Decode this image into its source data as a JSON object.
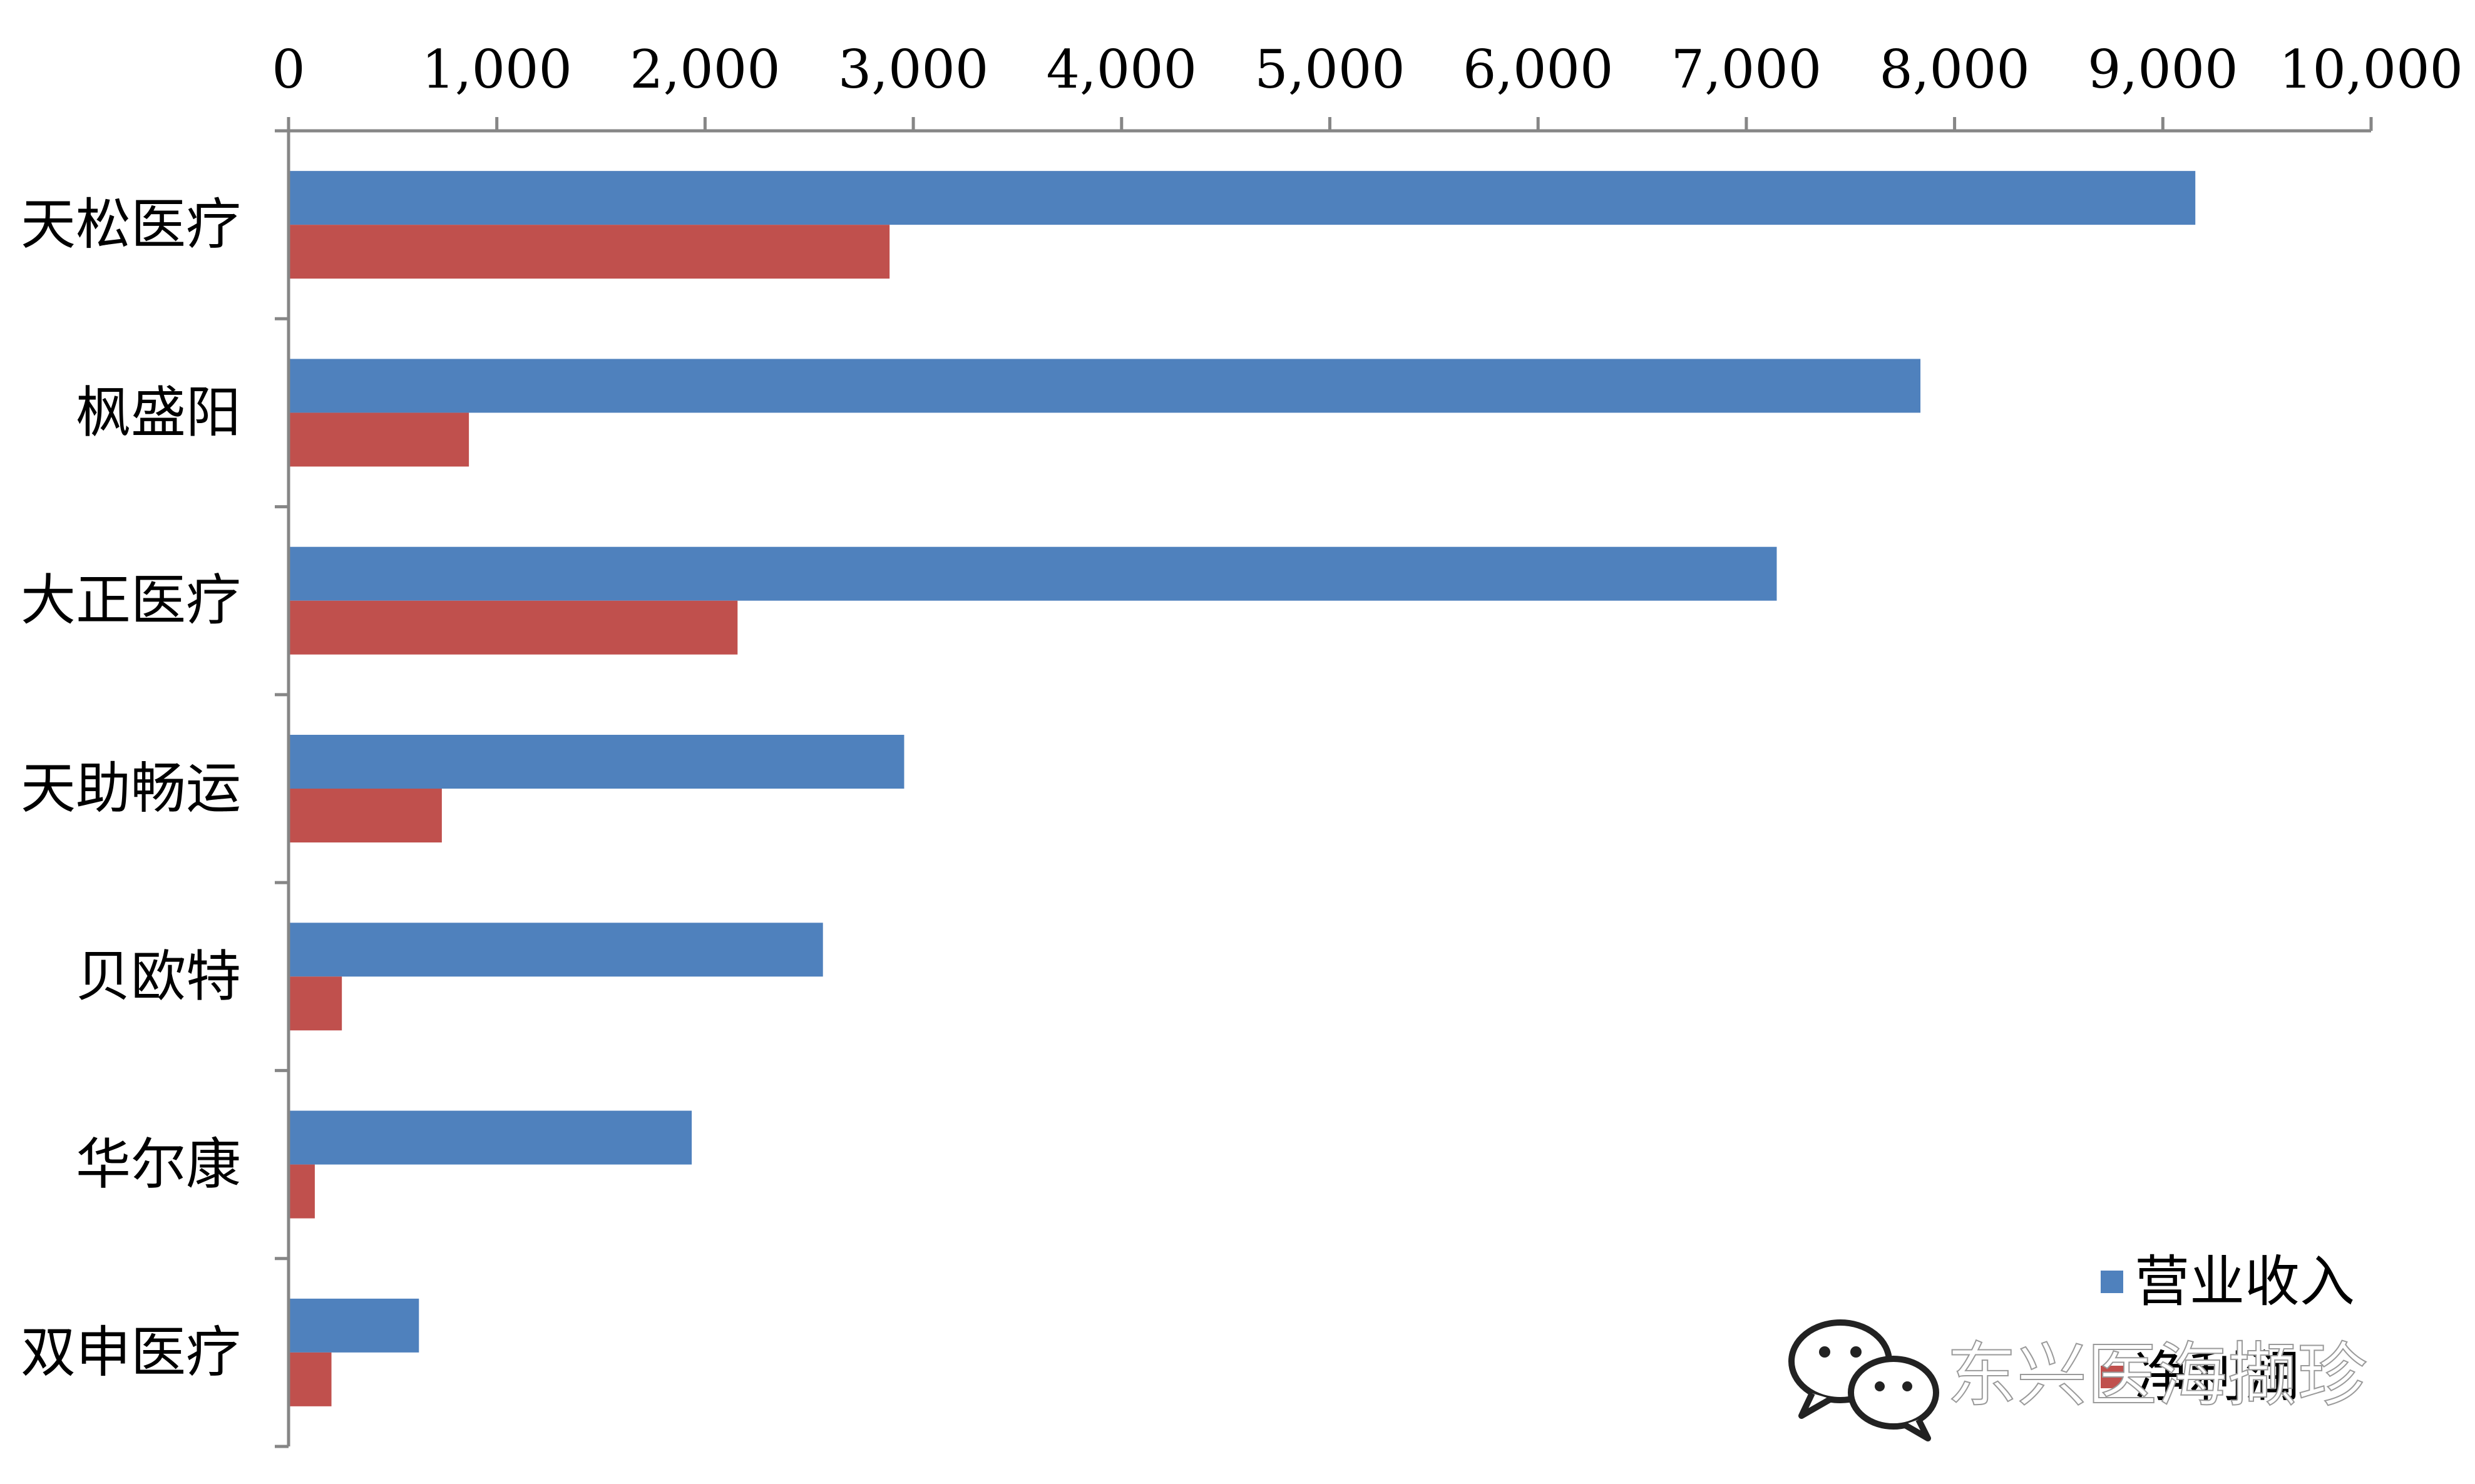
{
  "chart_data": {
    "type": "bar",
    "orientation": "horizontal",
    "x_axis_position": "top",
    "categories": [
      "天松医疗",
      "枫盛阳",
      "大正医疗",
      "天助畅运",
      "贝欧特",
      "华尔康",
      "双申医疗"
    ],
    "series": [
      {
        "name": "营业收入",
        "color": "#4F81BD",
        "values": [
          9150,
          7830,
          7140,
          2950,
          2560,
          1930,
          620
        ]
      },
      {
        "name": "净利润",
        "color": "#C0504D",
        "values": [
          2880,
          860,
          2150,
          730,
          250,
          120,
          200
        ]
      }
    ],
    "xlim": [
      0,
      10000
    ],
    "x_ticks": [
      "0",
      "1,000",
      "2,000",
      "3,000",
      "4,000",
      "5,000",
      "6,000",
      "7,000",
      "8,000",
      "9,000",
      "10,000"
    ],
    "grid": false,
    "legend_position": "bottom-right",
    "title": "",
    "xlabel": "",
    "ylabel": ""
  },
  "watermark": {
    "text": "东兴医海撷珍",
    "icon": "wechat-icon"
  }
}
